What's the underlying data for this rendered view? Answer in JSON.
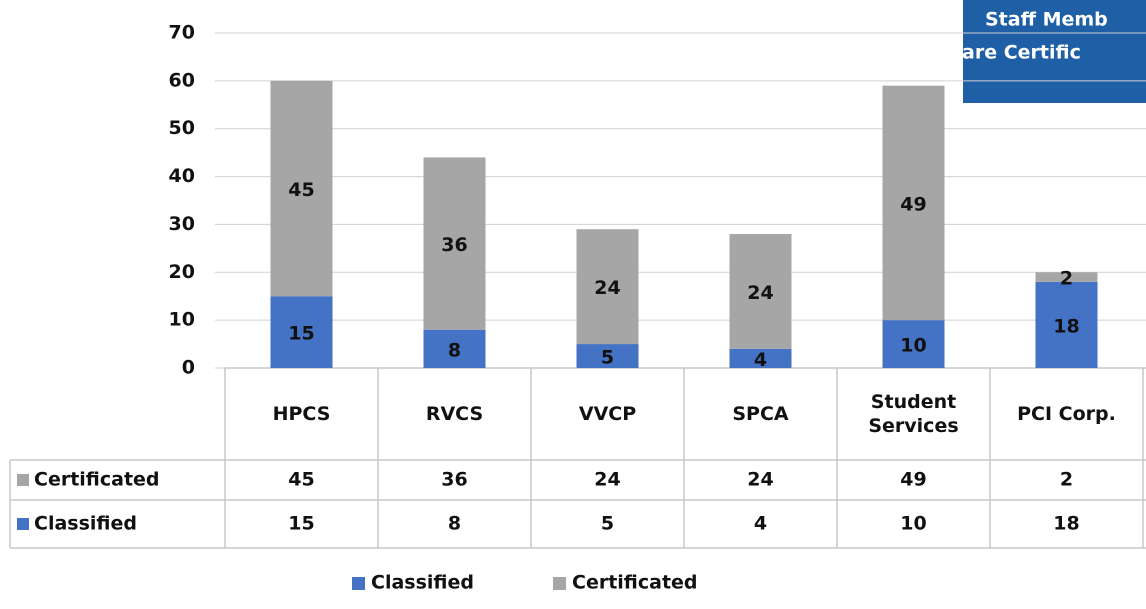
{
  "chart_data": {
    "type": "stacked_bar",
    "annotation": [
      "Staff Memb",
      "are Certific"
    ],
    "categories": [
      "HPCS",
      "RVCS",
      "VVCP",
      "SPCA",
      "Student Services",
      "PCI Corp."
    ],
    "series": [
      {
        "name": "Classified",
        "color": "#4472c4",
        "values": [
          15,
          8,
          5,
          4,
          10,
          18
        ]
      },
      {
        "name": "Certificated",
        "color": "#a6a6a6",
        "values": [
          45,
          36,
          24,
          24,
          49,
          2
        ]
      }
    ],
    "ylim": [
      0,
      70
    ],
    "yticks": [
      0,
      10,
      20,
      30,
      40,
      50,
      60,
      70
    ],
    "grid": true,
    "data_table": true,
    "legend": "bottom"
  }
}
